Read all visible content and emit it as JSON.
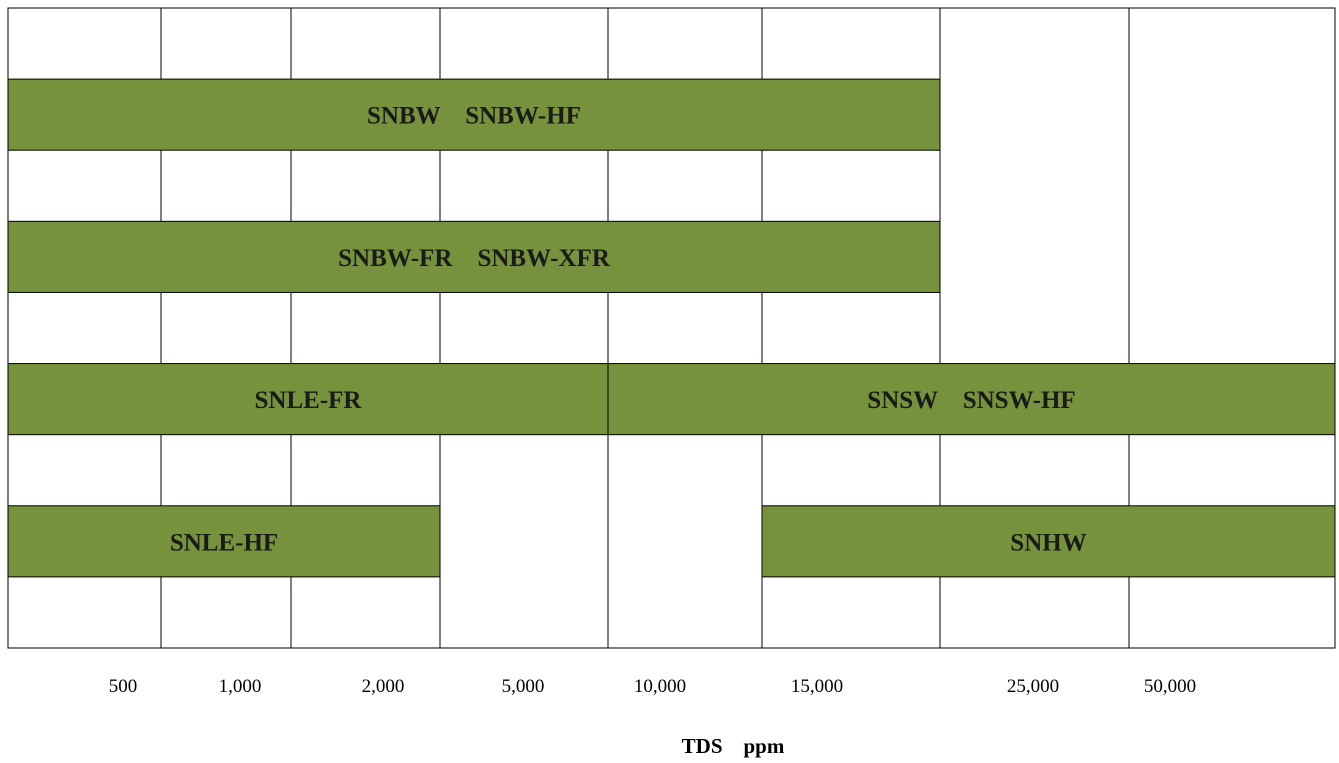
{
  "chart_data": {
    "type": "bar",
    "orientation": "horizontal-range",
    "title": "",
    "xlabel": "TDS　ppm",
    "ylabel": "",
    "categories": [
      "500",
      "1,000",
      "2,000",
      "5,000",
      "10,000",
      "15,000",
      "25,000",
      "50,000"
    ],
    "grid": true,
    "legend": "none",
    "series": [
      {
        "label": "SNBW　SNBW-HF",
        "start_category": "500",
        "end_category": "15,000"
      },
      {
        "label": "SNBW-FR　SNBW-XFR",
        "start_category": "500",
        "end_category": "15,000"
      },
      {
        "label": "SNLE-FR",
        "start_category": "500",
        "end_category": "5,000"
      },
      {
        "label": "SNSW　SNSW-HF",
        "start_category": "10,000",
        "end_category": "50,000"
      },
      {
        "label": "SNLE-HF",
        "start_category": "500",
        "end_category": "2,000"
      },
      {
        "label": "SNHW",
        "start_category": "15,000",
        "end_category": "50,000"
      }
    ]
  },
  "colors": {
    "bar_fill": "#76923c",
    "bar_text": "#1a1a1a",
    "grid_line": "#000000",
    "background": "#ffffff"
  }
}
